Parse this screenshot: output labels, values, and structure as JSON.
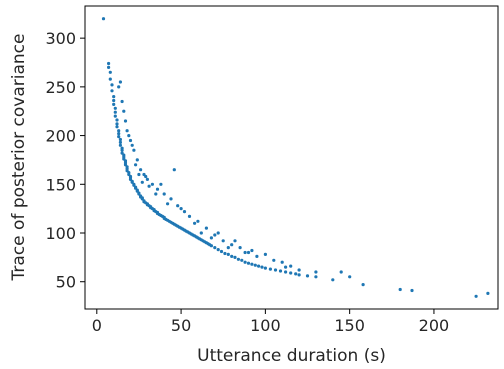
{
  "chart_data": {
    "type": "scatter",
    "xlabel": "Utterance duration (s)",
    "ylabel": "Trace of posterior covariance",
    "xlim": [
      -7,
      238
    ],
    "ylim": [
      22,
      333
    ],
    "xticks": [
      0,
      50,
      100,
      150,
      200
    ],
    "yticks": [
      50,
      100,
      150,
      200,
      250,
      300
    ],
    "grid": false,
    "marker_color": "#1f77b4",
    "series": [
      {
        "x": [
          4,
          7,
          7,
          8,
          8,
          9,
          9,
          10,
          10,
          10,
          11,
          11,
          11,
          12,
          12,
          12,
          13,
          13,
          13,
          14,
          14,
          14,
          15,
          15,
          15,
          16,
          16,
          16,
          17,
          17,
          17,
          18,
          18,
          18,
          19,
          19,
          20,
          20,
          20,
          21,
          21,
          22,
          22,
          23,
          23,
          24,
          24,
          25,
          25,
          26,
          26,
          27,
          27,
          28,
          28,
          29,
          30,
          30,
          31,
          32,
          32,
          33,
          34,
          34,
          35,
          36,
          36,
          37,
          38,
          39,
          40,
          40,
          41,
          42,
          43,
          44,
          45,
          46,
          47,
          48,
          49,
          50,
          51,
          52,
          53,
          54,
          55,
          56,
          57,
          58,
          59,
          60,
          61,
          62,
          63,
          64,
          65,
          66,
          67,
          68,
          70,
          72,
          74,
          76,
          78,
          80,
          82,
          84,
          86,
          88,
          90,
          92,
          94,
          96,
          98,
          100,
          103,
          106,
          109,
          112,
          115,
          118,
          120,
          125,
          130,
          13,
          15,
          17,
          18,
          20,
          22,
          24,
          26,
          28,
          30,
          33,
          36,
          40,
          44,
          48,
          52,
          55,
          60,
          65,
          70,
          75,
          80,
          85,
          90,
          95,
          100,
          110,
          115,
          120,
          130,
          140,
          145,
          150,
          158,
          180,
          187,
          225,
          232,
          14,
          16,
          19,
          21,
          23,
          25,
          27,
          29,
          31,
          35,
          38,
          42,
          46,
          50,
          58,
          62,
          68,
          72,
          78,
          82,
          88,
          92,
          105,
          112
        ],
        "y": [
          320,
          274,
          270,
          265,
          258,
          252,
          246,
          240,
          236,
          232,
          228,
          224,
          220,
          216,
          212,
          209,
          205,
          202,
          199,
          196,
          193,
          190,
          187,
          185,
          182,
          180,
          178,
          176,
          174,
          172,
          170,
          168,
          166,
          164,
          162,
          160,
          158,
          157,
          155,
          153,
          152,
          150,
          149,
          147,
          146,
          144,
          143,
          141,
          140,
          138,
          137,
          136,
          135,
          133,
          132,
          131,
          130,
          129,
          128,
          127,
          126,
          125,
          124,
          123,
          122,
          121,
          120,
          119,
          118,
          117,
          116,
          115,
          114,
          113,
          112,
          111,
          110,
          109,
          108,
          107,
          106,
          105,
          104,
          103,
          102,
          101,
          100,
          99,
          98,
          97,
          96,
          95,
          94,
          93,
          92,
          91,
          90,
          89,
          88,
          87,
          85,
          83,
          81,
          79,
          78,
          76,
          75,
          73,
          72,
          70,
          69,
          68,
          67,
          66,
          65,
          64,
          63,
          62,
          61,
          60,
          59,
          58,
          57,
          56,
          55,
          250,
          235,
          215,
          205,
          195,
          185,
          175,
          165,
          160,
          155,
          150,
          145,
          140,
          135,
          128,
          122,
          117,
          112,
          105,
          98,
          92,
          88,
          85,
          80,
          76,
          78,
          70,
          66,
          62,
          60,
          52,
          60,
          55,
          47,
          42,
          41,
          35,
          38,
          255,
          225,
          200,
          190,
          170,
          160,
          152,
          158,
          148,
          140,
          150,
          130,
          165,
          125,
          110,
          100,
          95,
          100,
          85,
          92,
          80,
          82,
          72,
          65
        ]
      }
    ]
  }
}
